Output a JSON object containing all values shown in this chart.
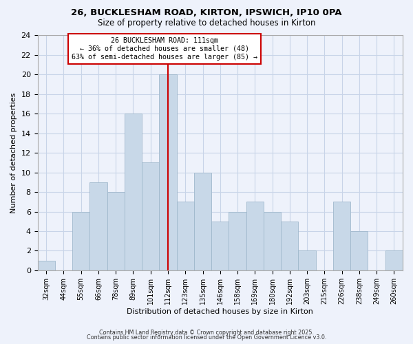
{
  "title1": "26, BUCKLESHAM ROAD, KIRTON, IPSWICH, IP10 0PA",
  "title2": "Size of property relative to detached houses in Kirton",
  "xlabel": "Distribution of detached houses by size in Kirton",
  "ylabel": "Number of detached properties",
  "categories": [
    "32sqm",
    "44sqm",
    "55sqm",
    "66sqm",
    "78sqm",
    "89sqm",
    "101sqm",
    "112sqm",
    "123sqm",
    "135sqm",
    "146sqm",
    "158sqm",
    "169sqm",
    "180sqm",
    "192sqm",
    "203sqm",
    "215sqm",
    "226sqm",
    "238sqm",
    "249sqm",
    "260sqm"
  ],
  "values": [
    1,
    0,
    6,
    9,
    8,
    16,
    11,
    20,
    7,
    10,
    5,
    6,
    7,
    6,
    5,
    2,
    0,
    7,
    4,
    0,
    2
  ],
  "bar_color": "#c8d8e8",
  "bar_edgecolor": "#a0b8cc",
  "highlight_index": 7,
  "highlight_line_color": "#cc0000",
  "annotation_line1": "26 BUCKLESHAM ROAD: 111sqm",
  "annotation_line2": "← 36% of detached houses are smaller (48)",
  "annotation_line3": "63% of semi-detached houses are larger (85) →",
  "annotation_box_edgecolor": "#cc0000",
  "annotation_box_facecolor": "#ffffff",
  "ylim": [
    0,
    24
  ],
  "yticks": [
    0,
    2,
    4,
    6,
    8,
    10,
    12,
    14,
    16,
    18,
    20,
    22,
    24
  ],
  "footer1": "Contains HM Land Registry data © Crown copyright and database right 2025.",
  "footer2": "Contains public sector information licensed under the Open Government Licence v3.0.",
  "bg_color": "#eef2fb",
  "grid_color": "#c8d4e8"
}
